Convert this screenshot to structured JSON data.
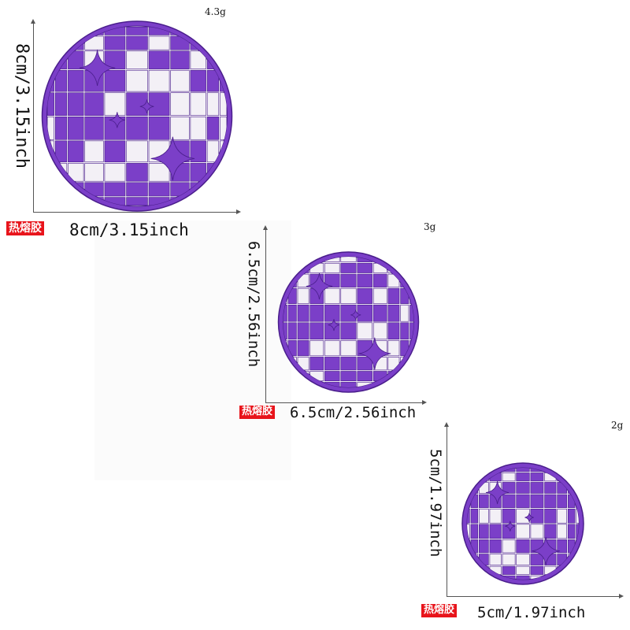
{
  "colors": {
    "purple": "#7b3fc8",
    "dark_purple": "#4a1e8c",
    "light": "#f3f0f6",
    "badge": "#e8141b"
  },
  "items": [
    {
      "weight": "4.3g",
      "height_label": "8cm/3.15inch",
      "badge": "热熔胶",
      "width_label": "8cm/3.15inch"
    },
    {
      "weight": "3g",
      "height_label": "6.5cm/2.56inch",
      "badge": "热熔胶",
      "width_label": "6.5cm/2.56inch"
    },
    {
      "weight": "2g",
      "height_label": "5cm/1.97inch",
      "badge": "热熔胶",
      "width_label": "5cm/1.97inch"
    }
  ]
}
